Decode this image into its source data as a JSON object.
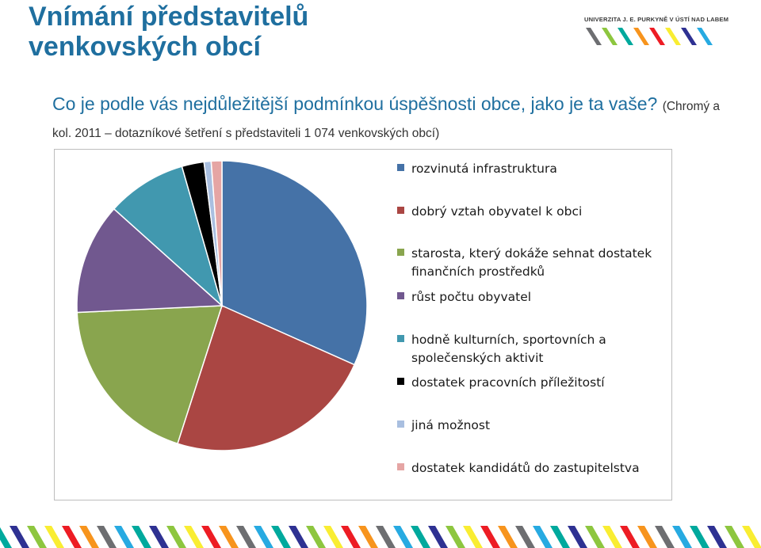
{
  "slide": {
    "title_line1": "Vnímání představitelů",
    "title_line2": "venkovských obcí",
    "question": "Co je podle vás nejdůležitější podmínkou úspěšnosti obce, jako je ta vaše?",
    "source": "(Chromý a kol. 2011 – dotazníkové šetření s představiteli 1 074 venkovských obcí)"
  },
  "logo": {
    "text": "UNIVERZITA J. E. PURKYNĚ V ÚSTÍ NAD LABEM",
    "stripe_colors": [
      "#6d6e71",
      "#8dc63f",
      "#00a99d",
      "#f7941d",
      "#ed1c24",
      "#f9ed32",
      "#2e3192",
      "#27aae1"
    ]
  },
  "chart_data": {
    "type": "pie",
    "title": "",
    "start_angle_deg": 0,
    "direction": "clockwise",
    "legend_position": "right",
    "categories": [
      "rozvinutá infrastruktura",
      "dobrý vztah obyvatel k obci",
      "starosta, který dokáže sehnat dostatek finančních prostředků",
      "růst počtu obyvatel",
      "hodně kulturních, sportovních a společenských aktivit",
      "dostatek pracovních příležitostí",
      "jiná možnost",
      "dostatek kandidátů do zastupitelstva"
    ],
    "values": [
      32.0,
      23.5,
      19.5,
      12.5,
      9.0,
      2.5,
      0.8,
      1.2
    ],
    "colors": [
      "#4572a7",
      "#aa4643",
      "#89a54e",
      "#71588f",
      "#4198af",
      "#000000",
      "#a9bfe0",
      "#e5a5a4"
    ]
  }
}
